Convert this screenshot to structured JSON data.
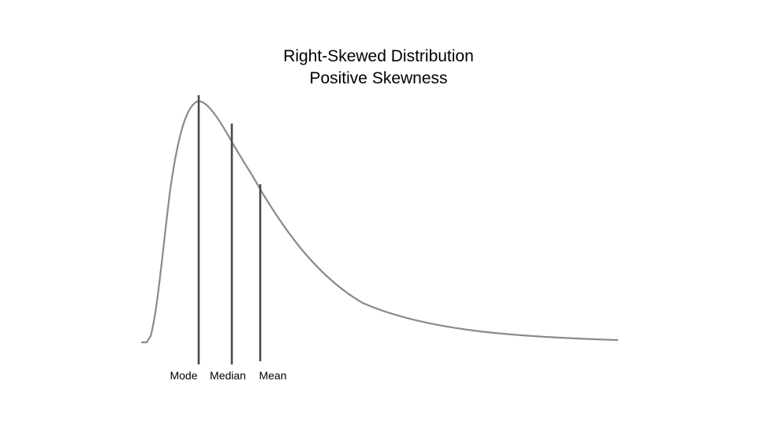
{
  "title": "Right-Skewed Distribution",
  "subtitle": "Positive Skewness",
  "markers": [
    {
      "id": "mode",
      "label": "Mode"
    },
    {
      "id": "median",
      "label": "Median"
    },
    {
      "id": "mean",
      "label": "Mean"
    }
  ],
  "colors": {
    "curve": "#8a8a8a",
    "marker_line": "#4a4a4a",
    "text": "#000000",
    "background": "#ffffff"
  }
}
